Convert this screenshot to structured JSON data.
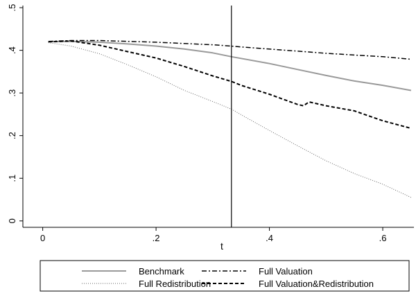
{
  "chart_data": {
    "type": "line",
    "xlabel": "t",
    "ylabel": "",
    "xlim": [
      -0.035,
      0.655
    ],
    "ylim": [
      -0.015,
      0.505
    ],
    "x_ticks": [
      0,
      0.2,
      0.4,
      0.6
    ],
    "x_tick_labels": [
      "0",
      ".2",
      ".4",
      ".6"
    ],
    "y_ticks": [
      0,
      0.1,
      0.2,
      0.3,
      0.4,
      0.5
    ],
    "y_tick_labels": [
      "0",
      ".1",
      ".2",
      ".3",
      ".4",
      ".5"
    ],
    "vertical_line_x": 0.333,
    "grid": false,
    "legend_placement": "bottom",
    "series": [
      {
        "name": "Benchmark",
        "style": "solid",
        "color": "#999999",
        "x": [
          0.01,
          0.05,
          0.1,
          0.15,
          0.2,
          0.25,
          0.3,
          0.333,
          0.35,
          0.4,
          0.45,
          0.5,
          0.55,
          0.6,
          0.65
        ],
        "y": [
          0.42,
          0.421,
          0.419,
          0.415,
          0.41,
          0.403,
          0.394,
          0.385,
          0.381,
          0.369,
          0.355,
          0.341,
          0.328,
          0.318,
          0.306
        ]
      },
      {
        "name": "Full Redistribution",
        "style": "dotted",
        "color": "#666666",
        "x": [
          0.01,
          0.05,
          0.1,
          0.15,
          0.2,
          0.25,
          0.3,
          0.333,
          0.35,
          0.4,
          0.45,
          0.5,
          0.55,
          0.6,
          0.65
        ],
        "y": [
          0.418,
          0.41,
          0.392,
          0.366,
          0.338,
          0.306,
          0.28,
          0.262,
          0.249,
          0.212,
          0.176,
          0.141,
          0.111,
          0.086,
          0.055
        ]
      },
      {
        "name": "Full Valuation",
        "style": "dashdot",
        "color": "#000000",
        "x": [
          0.01,
          0.05,
          0.1,
          0.15,
          0.2,
          0.25,
          0.3,
          0.333,
          0.35,
          0.4,
          0.45,
          0.5,
          0.55,
          0.6,
          0.65
        ],
        "y": [
          0.421,
          0.423,
          0.423,
          0.421,
          0.419,
          0.416,
          0.413,
          0.41,
          0.408,
          0.403,
          0.398,
          0.393,
          0.389,
          0.385,
          0.379
        ]
      },
      {
        "name": "Full Valuation&Redistribution",
        "style": "dashed",
        "color": "#000000",
        "x": [
          0.01,
          0.05,
          0.1,
          0.15,
          0.2,
          0.25,
          0.3,
          0.333,
          0.35,
          0.4,
          0.45,
          0.46,
          0.47,
          0.5,
          0.55,
          0.6,
          0.65
        ],
        "y": [
          0.42,
          0.422,
          0.412,
          0.397,
          0.382,
          0.362,
          0.34,
          0.327,
          0.318,
          0.297,
          0.273,
          0.27,
          0.279,
          0.27,
          0.258,
          0.235,
          0.217
        ]
      }
    ]
  }
}
